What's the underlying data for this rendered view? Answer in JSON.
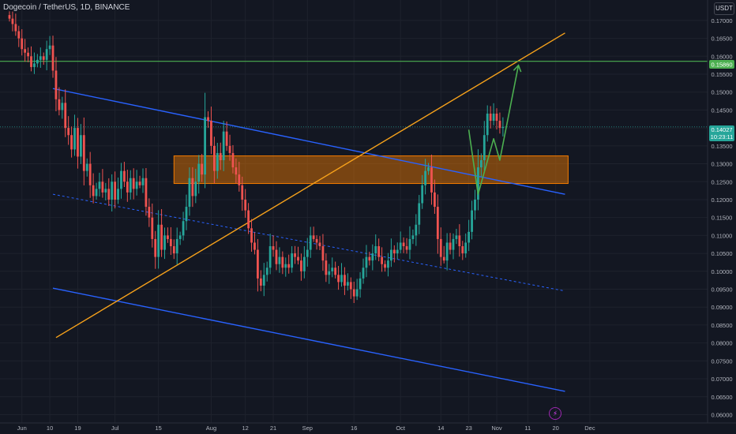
{
  "header": {
    "symbol_title": "Dogecoin / TetherUS, 1D, BINANCE",
    "unit_button": "USDT"
  },
  "colors": {
    "background": "#131722",
    "grid": "#1e222d",
    "axis_text": "#b2b5be",
    "up_candle": "#26a69a",
    "down_candle": "#ef5350",
    "channel_line": "#2962ff",
    "trend_line": "#f7a21b",
    "zone_fill": "rgba(245,124,0,0.45)",
    "zone_border": "#f57c00",
    "resistance_line": "#4caf50",
    "projection_line": "#4caf50",
    "events_icon": "#e040fb"
  },
  "icons": {
    "events": "lightning-icon"
  },
  "price_labels": {
    "resistance": "0.15860",
    "last_price": "0.14027",
    "countdown": "10:23:11"
  },
  "chart_data": {
    "type": "candlestick",
    "title": "Dogecoin / TetherUS, 1D, BINANCE",
    "xlabel": "",
    "ylabel": "",
    "ylim": [
      0.059,
      0.1735
    ],
    "grid": true,
    "y_ticks": [
      "0.17000",
      "0.16500",
      "0.16000",
      "0.15500",
      "0.15000",
      "0.14500",
      "0.14000",
      "0.13500",
      "0.13000",
      "0.12500",
      "0.12000",
      "0.11500",
      "0.11000",
      "0.10500",
      "0.10000",
      "0.09500",
      "0.09000",
      "0.08500",
      "0.08000",
      "0.07500",
      "0.07000",
      "0.06500",
      "0.06000"
    ],
    "x_ticks": [
      {
        "label": "Jun",
        "date": "2023-06-01"
      },
      {
        "label": "10",
        "date": "2023-06-10"
      },
      {
        "label": "19",
        "date": "2023-06-19"
      },
      {
        "label": "Jul",
        "date": "2023-07-01"
      },
      {
        "label": "15",
        "date": "2023-07-15"
      },
      {
        "label": "Aug",
        "date": "2023-08-01"
      },
      {
        "label": "12",
        "date": "2023-08-12"
      },
      {
        "label": "21",
        "date": "2023-08-21"
      },
      {
        "label": "Sep",
        "date": "2023-09-01"
      },
      {
        "label": "16",
        "date": "2023-09-16"
      },
      {
        "label": "Oct",
        "date": "2023-10-01"
      },
      {
        "label": "14",
        "date": "2023-10-14"
      },
      {
        "label": "23",
        "date": "2023-10-23"
      },
      {
        "label": "Nov",
        "date": "2023-11-01"
      },
      {
        "label": "11",
        "date": "2023-11-11"
      },
      {
        "label": "20",
        "date": "2023-11-20"
      },
      {
        "label": "Dec",
        "date": "2023-12-01"
      }
    ],
    "start_date": "2023-05-28",
    "candles_close": [
      0.1705,
      0.169,
      0.167,
      0.165,
      0.162,
      0.161,
      0.16,
      0.157,
      0.158,
      0.159,
      0.16,
      0.159,
      0.162,
      0.163,
      0.156,
      0.148,
      0.145,
      0.147,
      0.14,
      0.138,
      0.134,
      0.14,
      0.132,
      0.138,
      0.128,
      0.13,
      0.124,
      0.121,
      0.123,
      0.125,
      0.122,
      0.123,
      0.12,
      0.125,
      0.12,
      0.123,
      0.128,
      0.125,
      0.122,
      0.126,
      0.123,
      0.125,
      0.124,
      0.126,
      0.118,
      0.115,
      0.109,
      0.104,
      0.113,
      0.106,
      0.11,
      0.109,
      0.107,
      0.105,
      0.109,
      0.11,
      0.114,
      0.118,
      0.126,
      0.121,
      0.125,
      0.13,
      0.127,
      0.143,
      0.142,
      0.135,
      0.128,
      0.133,
      0.131,
      0.139,
      0.135,
      0.133,
      0.129,
      0.127,
      0.124,
      0.12,
      0.117,
      0.112,
      0.108,
      0.106,
      0.098,
      0.096,
      0.099,
      0.101,
      0.107,
      0.106,
      0.102,
      0.104,
      0.101,
      0.102,
      0.101,
      0.105,
      0.104,
      0.103,
      0.1,
      0.104,
      0.106,
      0.11,
      0.109,
      0.108,
      0.107,
      0.103,
      0.099,
      0.1,
      0.101,
      0.099,
      0.097,
      0.099,
      0.096,
      0.097,
      0.095,
      0.093,
      0.095,
      0.098,
      0.101,
      0.104,
      0.103,
      0.105,
      0.107,
      0.104,
      0.102,
      0.101,
      0.103,
      0.106,
      0.105,
      0.106,
      0.108,
      0.107,
      0.106,
      0.109,
      0.11,
      0.113,
      0.119,
      0.124,
      0.128,
      0.129,
      0.122,
      0.118,
      0.109,
      0.104,
      0.103,
      0.108,
      0.106,
      0.109,
      0.11,
      0.107,
      0.105,
      0.108,
      0.111,
      0.117,
      0.12,
      0.129,
      0.131,
      0.138,
      0.144,
      0.142,
      0.144,
      0.142,
      0.14,
      0.1403
    ],
    "series": [
      {
        "name": "Projected path",
        "dates": [
          "2023-10-23",
          "2023-10-26",
          "2023-10-31",
          "2023-11-02",
          "2023-11-08"
        ],
        "values": [
          0.1395,
          0.1215,
          0.137,
          0.131,
          0.1575
        ]
      }
    ],
    "lines": [
      {
        "kind": "channel-upper",
        "from": {
          "date": "2023-06-11",
          "price": 0.151
        },
        "to": {
          "date": "2023-11-23",
          "price": 0.1215
        }
      },
      {
        "kind": "channel-middle",
        "from": {
          "date": "2023-06-11",
          "price": 0.1215
        },
        "to": {
          "date": "2023-11-23",
          "price": 0.0945
        }
      },
      {
        "kind": "channel-lower",
        "from": {
          "date": "2023-06-11",
          "price": 0.0953
        },
        "to": {
          "date": "2023-11-23",
          "price": 0.0665
        }
      },
      {
        "kind": "trendline",
        "from": {
          "date": "2023-06-12",
          "price": 0.0815
        },
        "to": {
          "date": "2023-11-23",
          "price": 0.1665
        }
      }
    ],
    "zone": {
      "from_date": "2023-07-20",
      "to_date": "2023-11-24",
      "top": 0.1322,
      "bottom": 0.1245
    },
    "horizontal_levels": [
      0.1586
    ]
  }
}
